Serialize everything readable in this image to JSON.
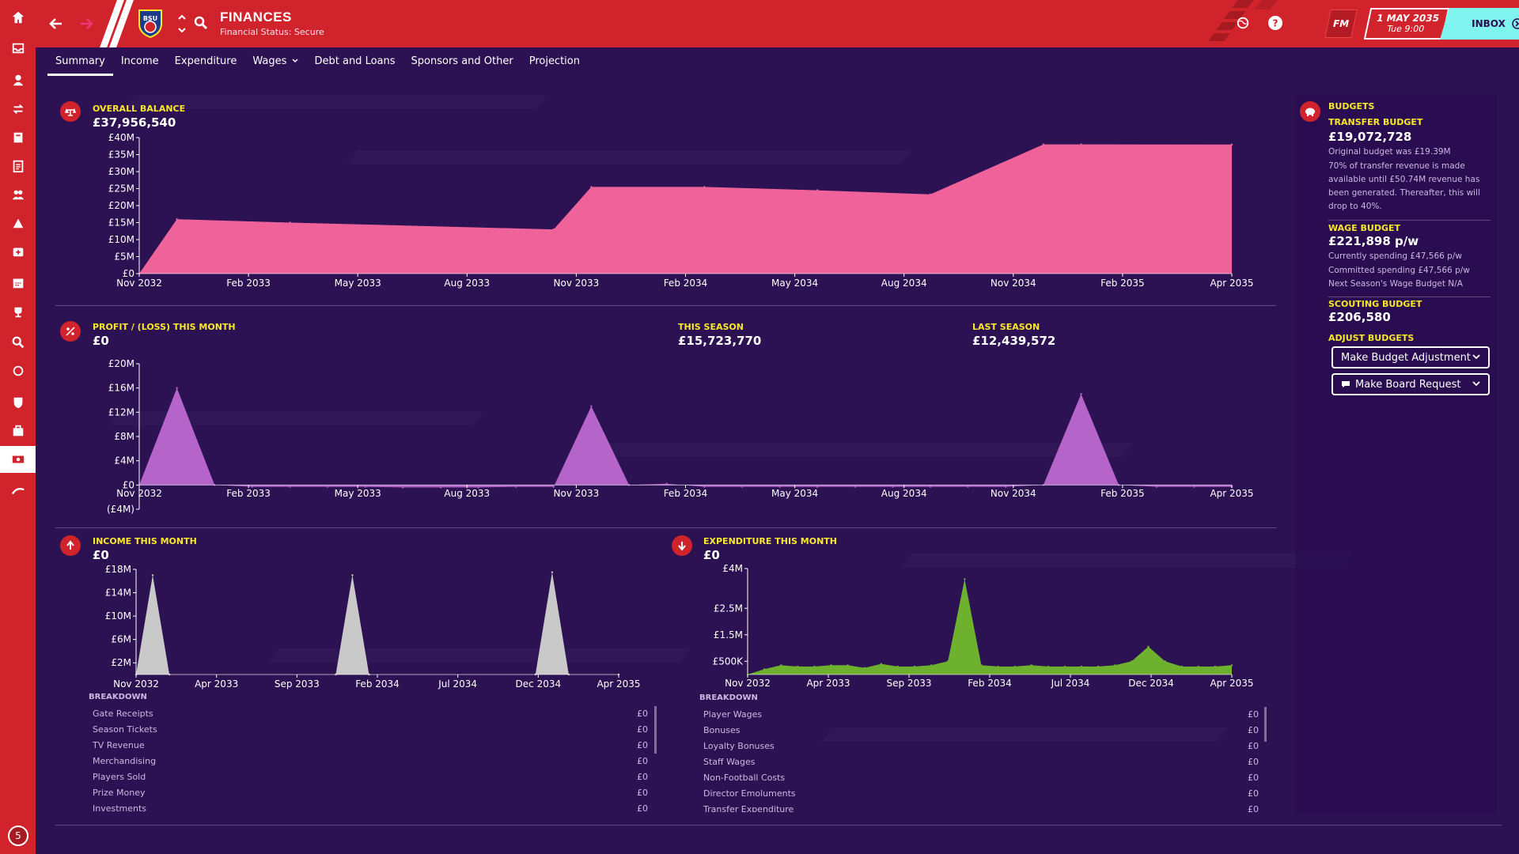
{
  "app": {
    "title": "FINANCES",
    "subtitle": "Financial Status: Secure",
    "club_badge_text": "BSU",
    "fm_label": "FM",
    "date": "1 MAY 2035",
    "time": "Tue 9:00",
    "inbox_label": "INBOX",
    "level_badge": "5"
  },
  "tabs": [
    {
      "label": "Summary"
    },
    {
      "label": "Income"
    },
    {
      "label": "Expenditure"
    },
    {
      "label": "Wages"
    },
    {
      "label": "Debt and Loans"
    },
    {
      "label": "Sponsors and Other"
    },
    {
      "label": "Projection"
    }
  ],
  "overall": {
    "title": "OVERALL BALANCE",
    "value": "£37,956,540"
  },
  "profit": {
    "title": "PROFIT / (LOSS) THIS MONTH",
    "value": "£0"
  },
  "this_season": {
    "title": "THIS SEASON",
    "value": "£15,723,770"
  },
  "last_season": {
    "title": "LAST SEASON",
    "value": "£12,439,572"
  },
  "income": {
    "title": "INCOME THIS MONTH",
    "value": "£0",
    "breakdown_title": "BREAKDOWN",
    "rows": [
      {
        "label": "Gate Receipts",
        "value": "£0"
      },
      {
        "label": "Season Tickets",
        "value": "£0"
      },
      {
        "label": "TV Revenue",
        "value": "£0"
      },
      {
        "label": "Merchandising",
        "value": "£0"
      },
      {
        "label": "Players Sold",
        "value": "£0"
      },
      {
        "label": "Prize Money",
        "value": "£0"
      },
      {
        "label": "Investments",
        "value": "£0"
      }
    ]
  },
  "expenditure": {
    "title": "EXPENDITURE THIS MONTH",
    "value": "£0",
    "breakdown_title": "BREAKDOWN",
    "rows": [
      {
        "label": "Player Wages",
        "value": "£0"
      },
      {
        "label": "Bonuses",
        "value": "£0"
      },
      {
        "label": "Loyalty Bonuses",
        "value": "£0"
      },
      {
        "label": "Staff Wages",
        "value": "£0"
      },
      {
        "label": "Non-Football Costs",
        "value": "£0"
      },
      {
        "label": "Director Emoluments",
        "value": "£0"
      },
      {
        "label": "Transfer Expenditure",
        "value": "£0"
      }
    ]
  },
  "budgets": {
    "title": "BUDGETS",
    "transfer_title": "TRANSFER BUDGET",
    "transfer_value": "£19,072,728",
    "transfer_note1": "Original budget was £19.39M",
    "transfer_note2": "70% of transfer revenue is made available until £50.74M revenue has been generated. Thereafter, this will drop to 40%.",
    "wage_title": "WAGE BUDGET",
    "wage_value": "£221,898 p/w",
    "wage_note1": "Currently spending £47,566 p/w",
    "wage_note2": "Committed spending £47,566 p/w",
    "wage_note3": "Next Season's Wage Budget N/A",
    "scouting_title": "SCOUTING BUDGET",
    "scouting_value": "£206,580",
    "adjust_title": "ADJUST BUDGETS",
    "btn_adjust": "Make Budget Adjustment",
    "btn_request": "Make Board Request"
  },
  "colors": {
    "sidebar": "#d0232c",
    "background": "#2d1253",
    "accent_yellow": "#f9e82a",
    "inbox": "#7ff3ee",
    "balance_fill": "#f0629a",
    "profit_fill": "#b565c9",
    "income_fill": "#c9c9c9",
    "expenditure_fill": "#6db12f"
  },
  "chart_data": [
    {
      "type": "area",
      "title": "OVERALL BALANCE",
      "x_ticks": [
        "Nov 2032",
        "Feb 2033",
        "May 2033",
        "Aug 2033",
        "Nov 2033",
        "Feb 2034",
        "May 2034",
        "Aug 2034",
        "Nov 2034",
        "Feb 2035",
        "Apr 2035"
      ],
      "y_ticks": [
        "£0",
        "£5M",
        "£10M",
        "£15M",
        "£20M",
        "£25M",
        "£30M",
        "£35M",
        "£40M"
      ],
      "ylim": [
        0,
        40
      ],
      "x": [
        0,
        1,
        4,
        11,
        12,
        15,
        18,
        21,
        24,
        25,
        29
      ],
      "values": [
        0,
        16,
        15,
        13,
        25.5,
        25.5,
        24.5,
        23.3,
        38,
        38,
        37.96
      ],
      "units": "£M"
    },
    {
      "type": "area",
      "title": "PROFIT / (LOSS) THIS MONTH",
      "x_ticks": [
        "Nov 2032",
        "Feb 2033",
        "May 2033",
        "Aug 2033",
        "Nov 2033",
        "Feb 2034",
        "May 2034",
        "Aug 2034",
        "Nov 2034",
        "Feb 2035",
        "Apr 2035"
      ],
      "y_ticks": [
        "(£4M)",
        "£0",
        "£4M",
        "£8M",
        "£12M",
        "£16M",
        "£20M"
      ],
      "ylim": [
        -4,
        20
      ],
      "x": [
        0,
        1,
        2,
        3,
        4,
        5,
        6,
        7,
        8,
        9,
        10,
        11,
        12,
        13,
        14,
        15,
        16,
        17,
        18,
        19,
        20,
        21,
        22,
        23,
        24,
        25,
        26,
        27,
        28,
        29
      ],
      "values": [
        0,
        16,
        0,
        -0.3,
        -0.3,
        -0.3,
        -0.3,
        -0.4,
        -0.4,
        -0.4,
        -0.3,
        -0.3,
        13,
        0,
        0.2,
        -0.3,
        -0.3,
        -0.3,
        -0.3,
        -0.3,
        -0.3,
        -0.3,
        -0.3,
        -0.3,
        0,
        15,
        0,
        -0.3,
        -0.3,
        -0.3
      ],
      "units": "£M"
    },
    {
      "type": "area",
      "title": "INCOME THIS MONTH",
      "x_ticks": [
        "Nov 2032",
        "Apr 2033",
        "Sep 2033",
        "Feb 2034",
        "Jul 2034",
        "Dec 2034",
        "Apr 2035"
      ],
      "y_ticks": [
        "£2M",
        "£6M",
        "£10M",
        "£14M",
        "£18M"
      ],
      "ylim": [
        0,
        18
      ],
      "x": [
        0,
        1,
        2,
        12,
        13,
        14,
        24,
        25,
        26,
        29
      ],
      "values": [
        0,
        17,
        0,
        0,
        17,
        0,
        0,
        17.5,
        0,
        0
      ],
      "units": "£M"
    },
    {
      "type": "area",
      "title": "EXPENDITURE THIS MONTH",
      "x_ticks": [
        "Nov 2032",
        "Apr 2033",
        "Sep 2033",
        "Feb 2034",
        "Jul 2034",
        "Dec 2034",
        "Apr 2035"
      ],
      "y_ticks": [
        "£500K",
        "£1.5M",
        "£2.5M",
        "£4M"
      ],
      "ylim": [
        0,
        4
      ],
      "x": [
        0,
        1,
        2,
        3,
        4,
        5,
        6,
        7,
        8,
        9,
        10,
        11,
        12,
        13,
        14,
        15,
        16,
        17,
        18,
        19,
        20,
        21,
        22,
        23,
        24,
        25,
        26,
        27,
        28,
        29
      ],
      "values": [
        0,
        0.2,
        0.35,
        0.3,
        0.3,
        0.35,
        0.35,
        0.25,
        0.4,
        0.3,
        0.3,
        0.35,
        0.5,
        3.6,
        0.35,
        0.3,
        0.3,
        0.35,
        0.3,
        0.3,
        0.3,
        0.3,
        0.35,
        0.5,
        1.05,
        0.5,
        0.3,
        0.3,
        0.3,
        0.35
      ],
      "units": "£M"
    }
  ]
}
